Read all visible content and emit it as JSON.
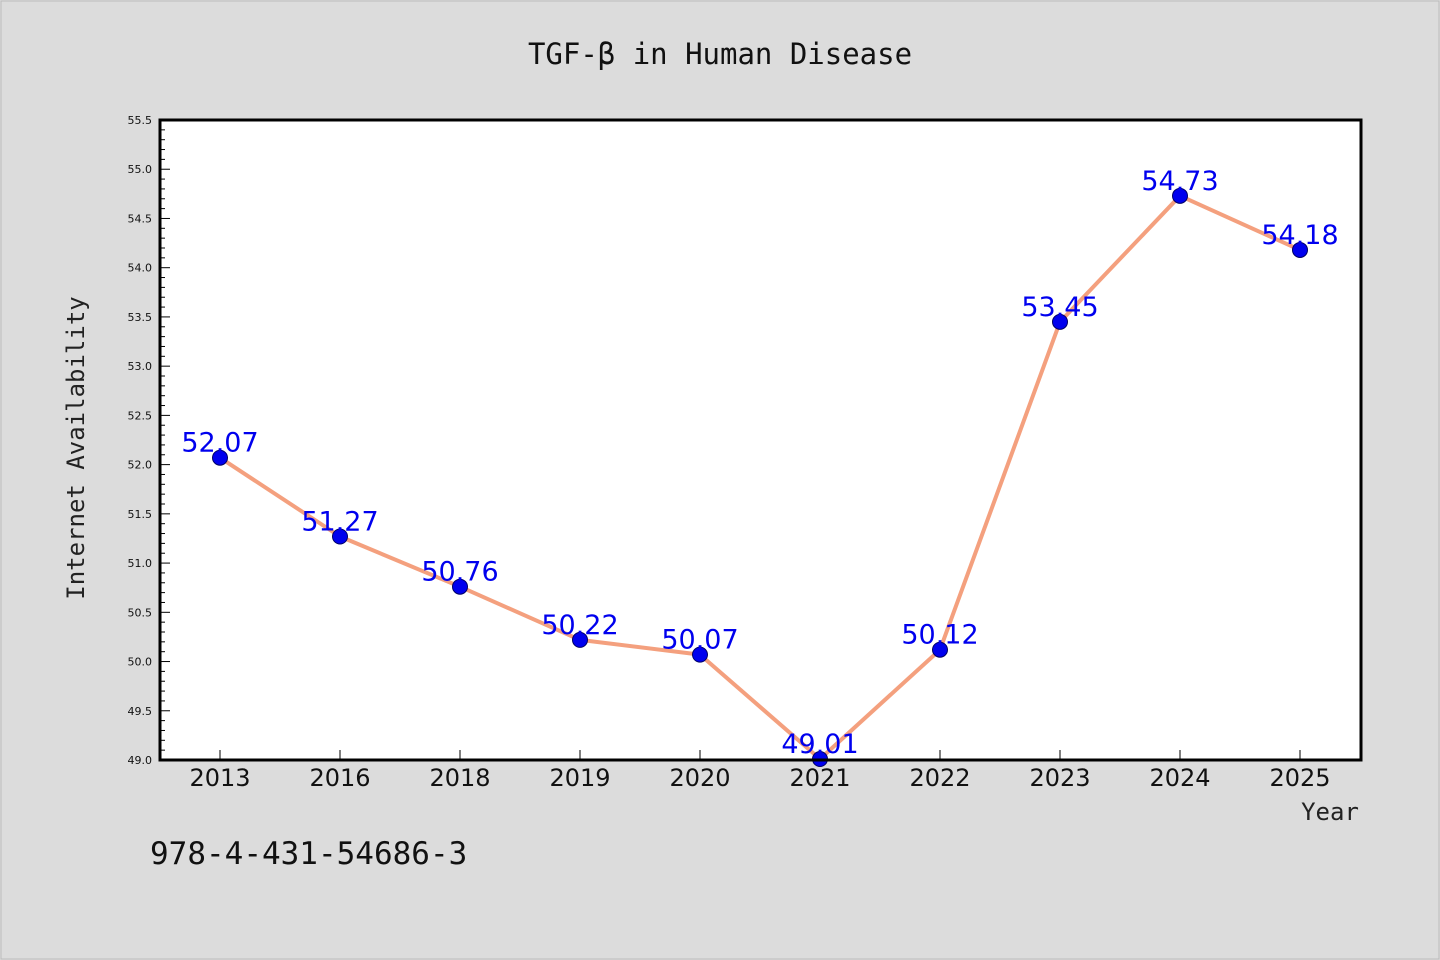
{
  "chart_data": {
    "type": "line",
    "title": "TGF-β in Human Disease",
    "xlabel": "Year",
    "ylabel": "Internet Availability",
    "categories": [
      "2013",
      "2016",
      "2018",
      "2019",
      "2020",
      "2021",
      "2022",
      "2023",
      "2024",
      "2025"
    ],
    "series": [
      {
        "values": [
          52.07,
          51.27,
          50.76,
          50.22,
          50.07,
          49.01,
          50.12,
          53.45,
          54.73,
          54.18
        ]
      }
    ],
    "data_labels": [
      "52.07",
      "51.27",
      "50.76",
      "50.22",
      "50.07",
      "49.01",
      "50.12",
      "53.45",
      "54.73",
      "54.18"
    ],
    "ylim": [
      49.0,
      55.5
    ],
    "yticks": [
      "49.0",
      "49.5",
      "50.0",
      "50.5",
      "51.0",
      "51.5",
      "52.0",
      "52.5",
      "53.0",
      "53.5",
      "54.0",
      "54.5",
      "55.0",
      "55.5"
    ],
    "grid": false,
    "legend": "none",
    "colors": {
      "line": "#f4a07e",
      "marker": "#0000ee",
      "label": "#0000ee"
    }
  },
  "footer": {
    "isbn": "978-4-431-54686-3"
  }
}
